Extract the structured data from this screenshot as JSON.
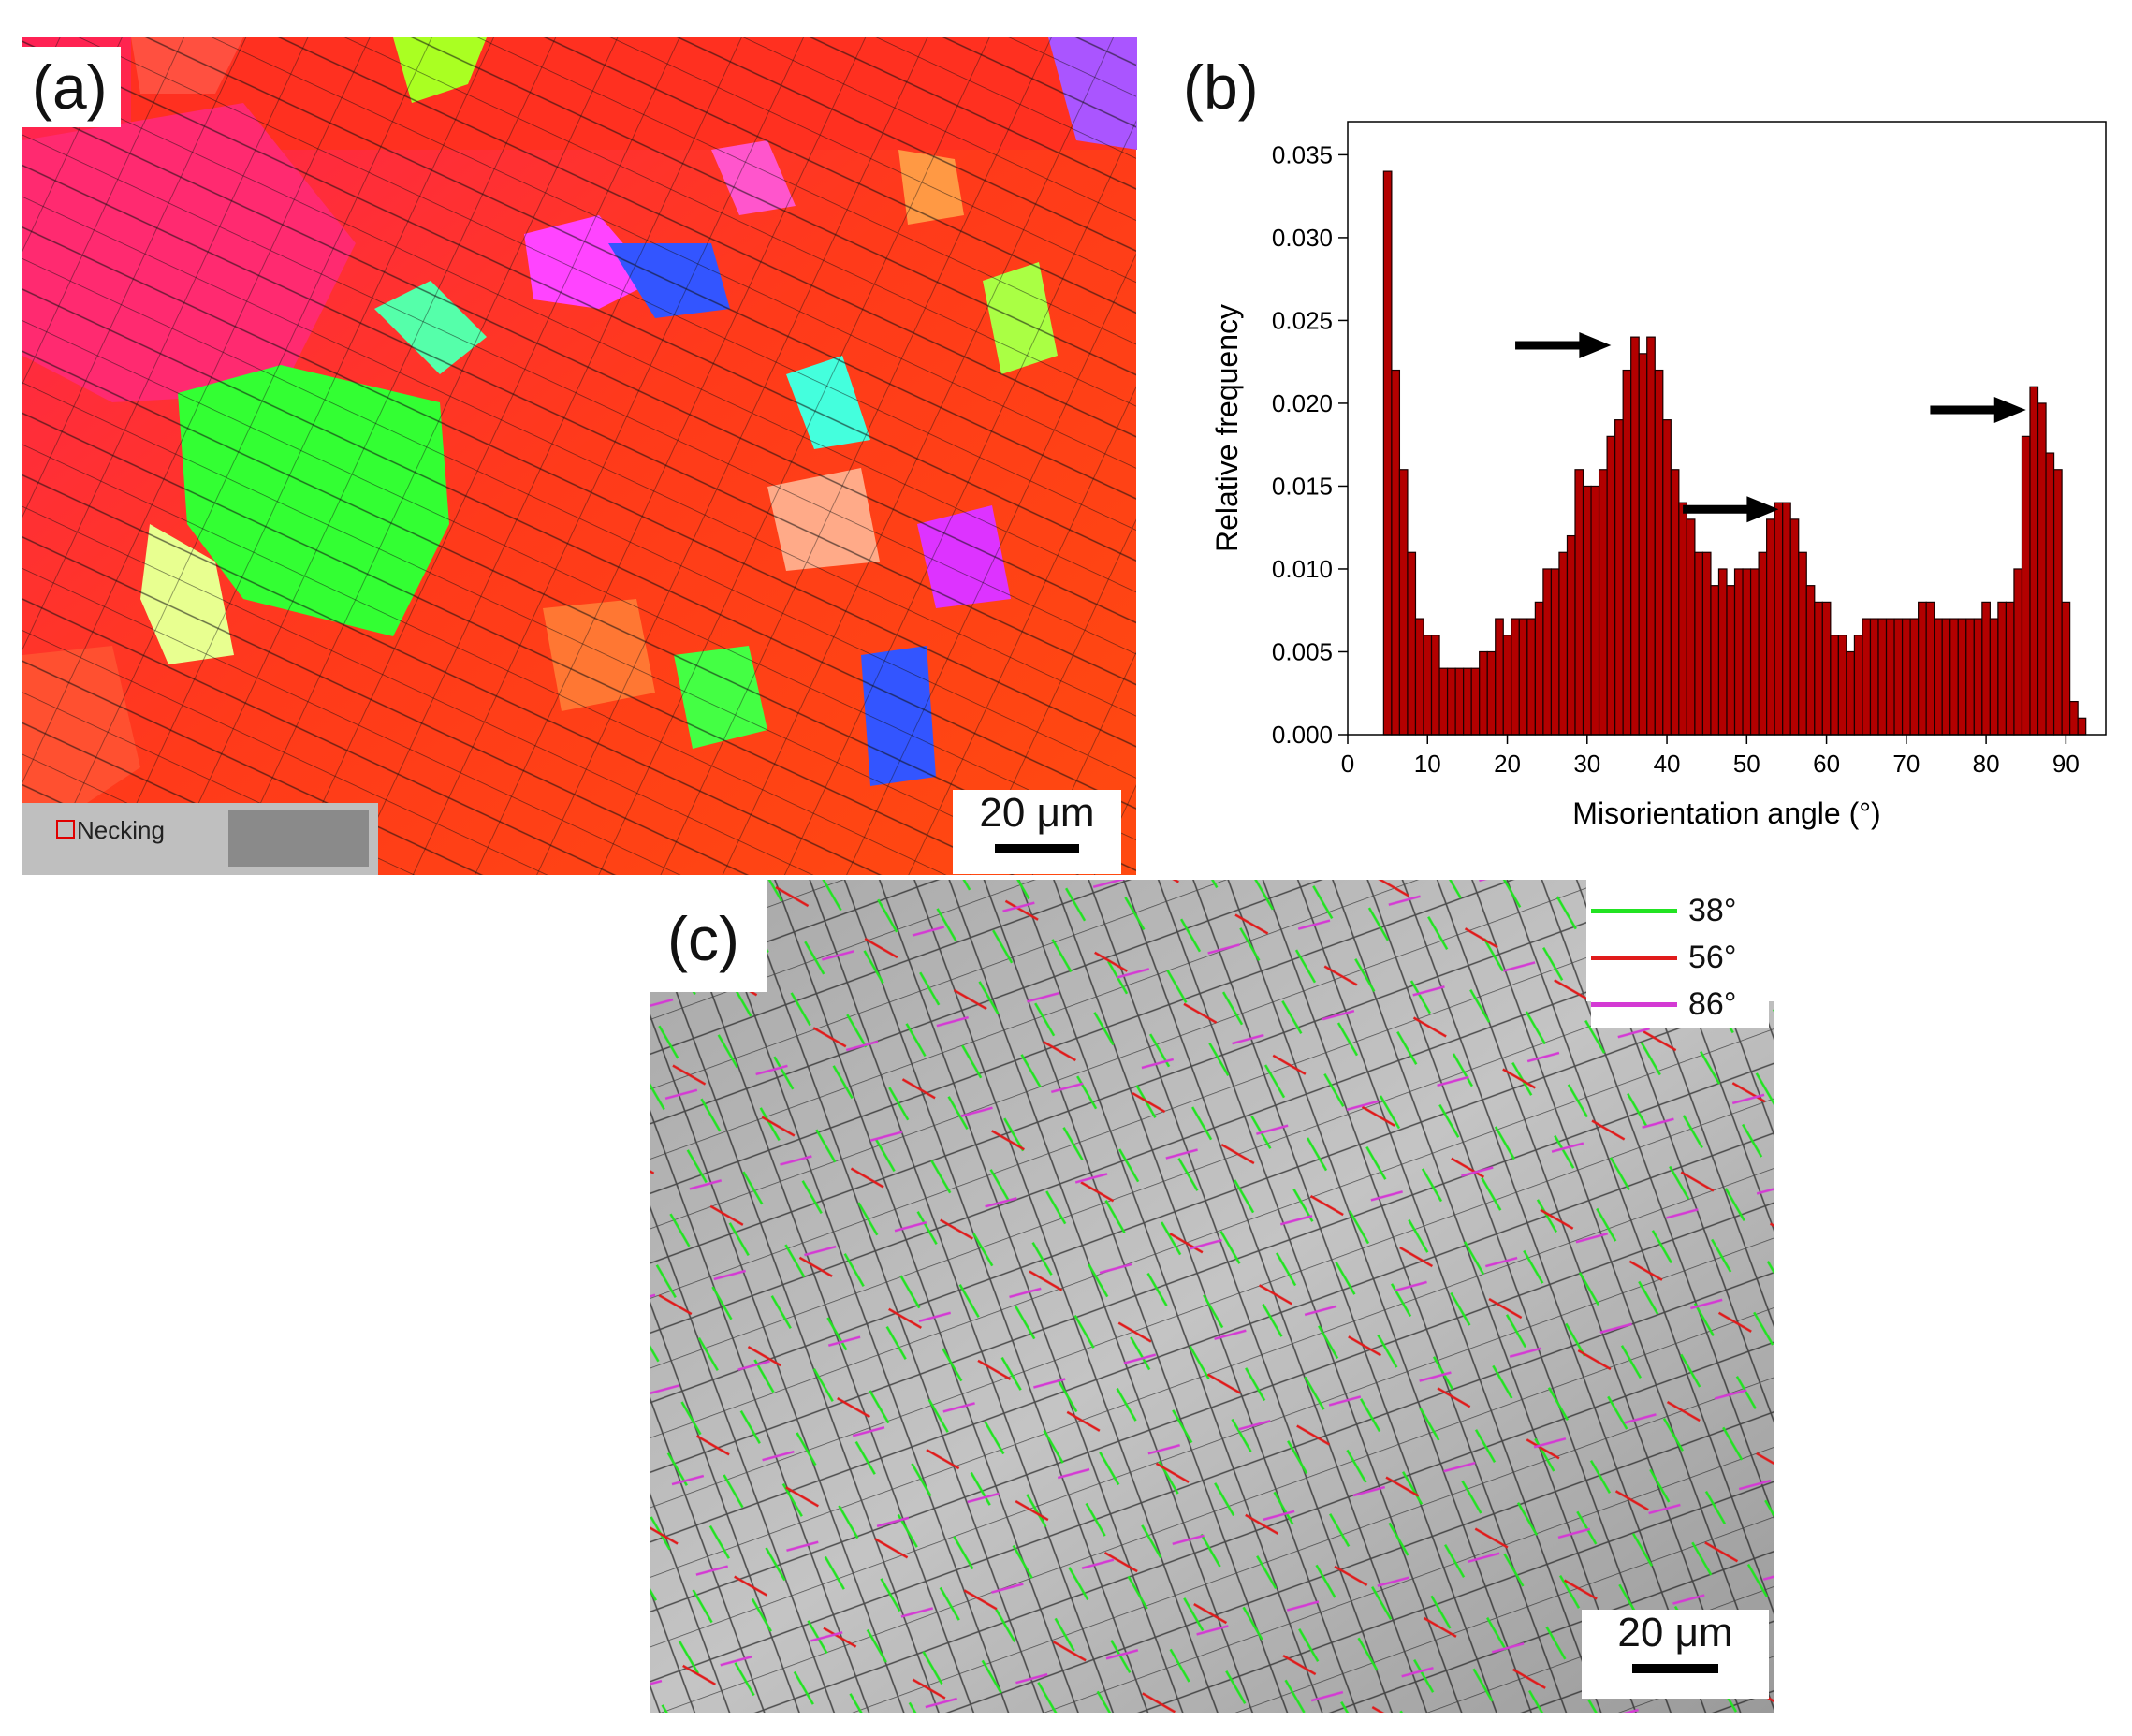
{
  "panels": {
    "a": {
      "label": "(a)",
      "scale_bar": "20 μm",
      "inset_label": "Necking"
    },
    "b": {
      "label": "(b)"
    },
    "c": {
      "label": "(c)",
      "scale_bar": "20 μm"
    }
  },
  "legend": [
    {
      "label": "38°",
      "color": "#22e322"
    },
    {
      "label": "56°",
      "color": "#e01b1b"
    },
    {
      "label": "86°",
      "color": "#d43ad4"
    }
  ],
  "chart_data": {
    "type": "bar",
    "xlabel": "Misorientation angle (°)",
    "ylabel": "Relative frequency",
    "xlim": [
      0,
      95
    ],
    "ylim": [
      0,
      0.037
    ],
    "xticks": [
      0,
      10,
      20,
      30,
      40,
      50,
      60,
      70,
      80,
      90
    ],
    "yticks": [
      0.0,
      0.005,
      0.01,
      0.015,
      0.02,
      0.025,
      0.03,
      0.035
    ],
    "ytick_labels": [
      "0.000",
      "0.005",
      "0.010",
      "0.015",
      "0.020",
      "0.025",
      "0.030",
      "0.035"
    ],
    "bar_color": "#b30000",
    "bar_width": 1,
    "x": [
      5,
      6,
      7,
      8,
      9,
      10,
      11,
      12,
      13,
      14,
      15,
      16,
      17,
      18,
      19,
      20,
      21,
      22,
      23,
      24,
      25,
      26,
      27,
      28,
      29,
      30,
      31,
      32,
      33,
      34,
      35,
      36,
      37,
      38,
      39,
      40,
      41,
      42,
      43,
      44,
      45,
      46,
      47,
      48,
      49,
      50,
      51,
      52,
      53,
      54,
      55,
      56,
      57,
      58,
      59,
      60,
      61,
      62,
      63,
      64,
      65,
      66,
      67,
      68,
      69,
      70,
      71,
      72,
      73,
      74,
      75,
      76,
      77,
      78,
      79,
      80,
      81,
      82,
      83,
      84,
      85,
      86,
      87,
      88,
      89,
      90,
      91,
      92
    ],
    "values": [
      0.034,
      0.022,
      0.016,
      0.011,
      0.007,
      0.006,
      0.006,
      0.004,
      0.004,
      0.004,
      0.004,
      0.004,
      0.005,
      0.005,
      0.007,
      0.006,
      0.007,
      0.007,
      0.007,
      0.008,
      0.01,
      0.01,
      0.011,
      0.012,
      0.016,
      0.015,
      0.015,
      0.016,
      0.018,
      0.019,
      0.022,
      0.024,
      0.023,
      0.024,
      0.022,
      0.019,
      0.016,
      0.014,
      0.013,
      0.011,
      0.011,
      0.009,
      0.01,
      0.009,
      0.01,
      0.01,
      0.01,
      0.011,
      0.013,
      0.014,
      0.014,
      0.013,
      0.011,
      0.009,
      0.008,
      0.008,
      0.006,
      0.006,
      0.005,
      0.006,
      0.007,
      0.007,
      0.007,
      0.007,
      0.007,
      0.007,
      0.007,
      0.008,
      0.008,
      0.007,
      0.007,
      0.007,
      0.007,
      0.007,
      0.007,
      0.008,
      0.007,
      0.008,
      0.008,
      0.01,
      0.018,
      0.021,
      0.02,
      0.017,
      0.016,
      0.008,
      0.002,
      0.001
    ],
    "arrows": [
      {
        "x_start": 21,
        "x_end": 33,
        "y": 0.0235
      },
      {
        "x_start": 42,
        "x_end": 54,
        "y": 0.0136
      },
      {
        "x_start": 73,
        "x_end": 85,
        "y": 0.0196
      }
    ]
  }
}
